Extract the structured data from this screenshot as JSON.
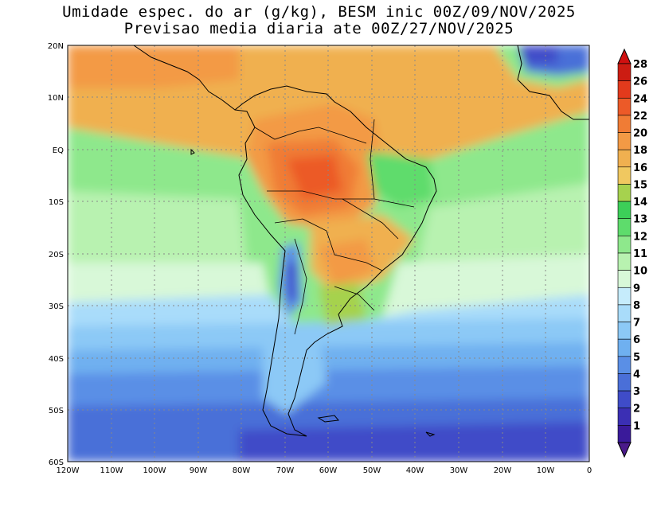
{
  "title_line1": "Umidade espec. do ar (g/kg), BESM inic 00Z/09/NOV/2025",
  "title_line2": "Previsao media diaria ate 00Z/27/NOV/2025",
  "lat_labels": [
    "20N",
    "10N",
    "EQ",
    "10S",
    "20S",
    "30S",
    "40S",
    "50S",
    "60S"
  ],
  "lon_labels": [
    "120W",
    "110W",
    "100W",
    "90W",
    "80W",
    "70W",
    "60W",
    "50W",
    "40W",
    "30W",
    "20W",
    "10W",
    "0"
  ],
  "colorbar": {
    "levels": [
      "1",
      "2",
      "3",
      "4",
      "5",
      "6",
      "7",
      "8",
      "9",
      "10",
      "11",
      "12",
      "13",
      "14",
      "15",
      "16",
      "18",
      "20",
      "22",
      "24",
      "26",
      "28"
    ],
    "colors": [
      "#3a1a9a",
      "#3b2fb4",
      "#3f4cc8",
      "#4a6fd8",
      "#5a8fe6",
      "#6fb0f0",
      "#8cc9f6",
      "#a9dcfa",
      "#c6ecfc",
      "#d8f8d8",
      "#b8f2b0",
      "#8ee88c",
      "#5edc6c",
      "#3ccf58",
      "#a6d24e",
      "#f0c860",
      "#f0b050",
      "#f39a45",
      "#f07c35",
      "#ec5a28",
      "#e23a1c",
      "#cc1c12"
    ],
    "under_color": "#4a1a8a",
    "over_color": "#d01010"
  },
  "colors": {
    "ocean_tropical": "#f0b050",
    "ocean_subtropical": "#8ee88c",
    "ocean_mid": "#a9dcfa",
    "ocean_south": "#4a6fd8",
    "amazon_core": "#f07c35"
  }
}
